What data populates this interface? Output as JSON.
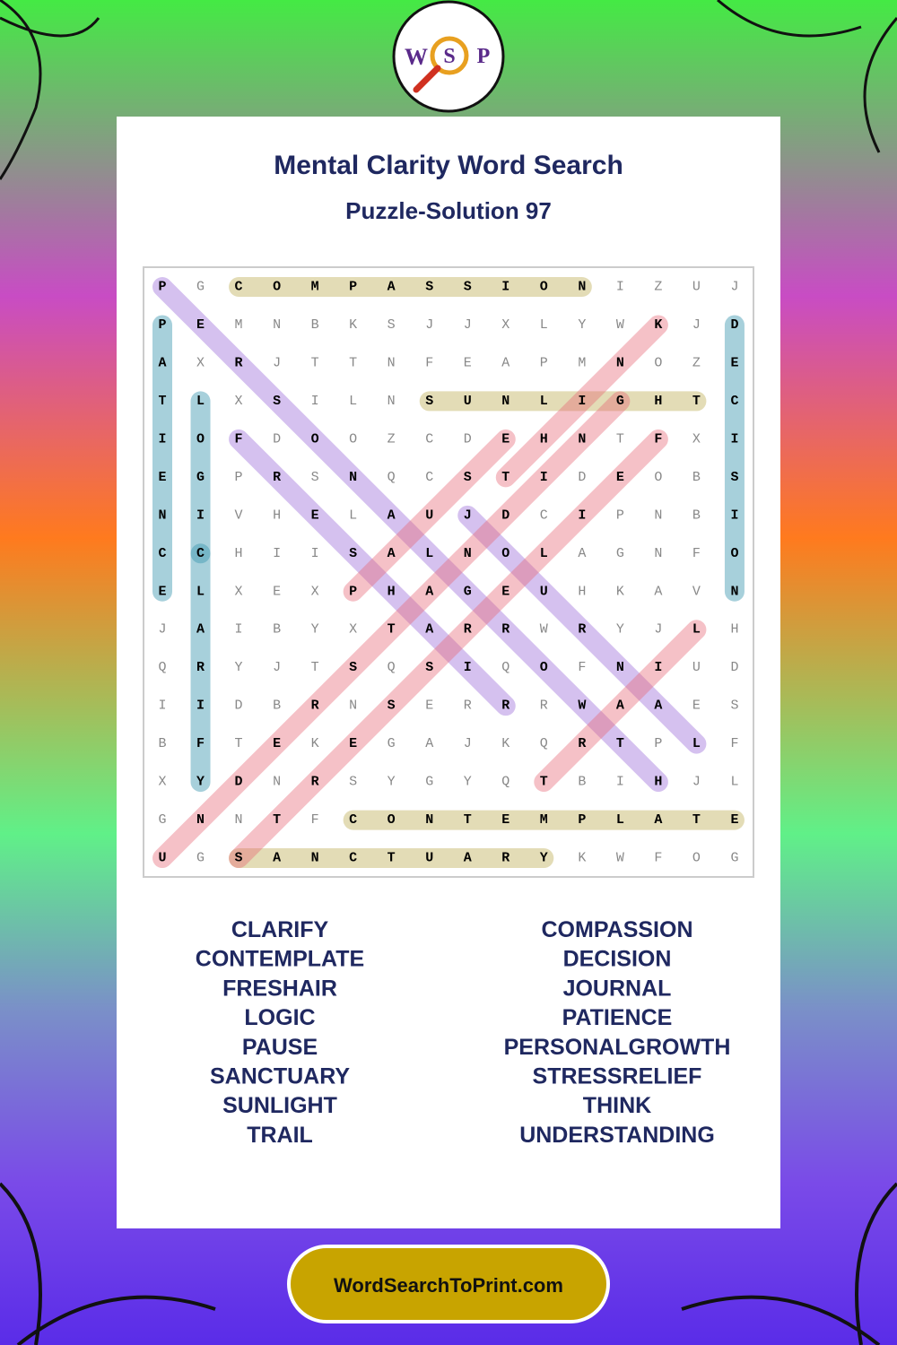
{
  "logo": {
    "letters": [
      "W",
      "S",
      "P"
    ]
  },
  "header": {
    "title": "Mental Clarity Word Search",
    "subtitle": "Puzzle-Solution 97"
  },
  "grid": {
    "rows": [
      [
        "P",
        "G",
        "C",
        "O",
        "M",
        "P",
        "A",
        "S",
        "S",
        "I",
        "O",
        "N",
        "I",
        "Z",
        "U",
        "J"
      ],
      [
        "P",
        "E",
        "M",
        "N",
        "B",
        "K",
        "S",
        "J",
        "J",
        "X",
        "L",
        "Y",
        "W",
        "K",
        "J",
        "D"
      ],
      [
        "A",
        "X",
        "R",
        "J",
        "T",
        "T",
        "N",
        "F",
        "E",
        "A",
        "P",
        "M",
        "N",
        "O",
        "Z",
        "E"
      ],
      [
        "T",
        "L",
        "X",
        "S",
        "I",
        "L",
        "N",
        "S",
        "U",
        "N",
        "L",
        "I",
        "G",
        "H",
        "T",
        "C"
      ],
      [
        "I",
        "O",
        "F",
        "D",
        "O",
        "O",
        "Z",
        "C",
        "D",
        "E",
        "H",
        "N",
        "T",
        "F",
        "X",
        "I"
      ],
      [
        "E",
        "G",
        "P",
        "R",
        "S",
        "N",
        "Q",
        "C",
        "S",
        "T",
        "I",
        "D",
        "E",
        "O",
        "B",
        "S"
      ],
      [
        "N",
        "I",
        "V",
        "H",
        "E",
        "L",
        "A",
        "U",
        "J",
        "D",
        "C",
        "I",
        "P",
        "N",
        "B",
        "I"
      ],
      [
        "C",
        "C",
        "H",
        "I",
        "I",
        "S",
        "A",
        "L",
        "N",
        "O",
        "L",
        "A",
        "G",
        "N",
        "F",
        "O"
      ],
      [
        "E",
        "L",
        "X",
        "E",
        "X",
        "P",
        "H",
        "A",
        "G",
        "E",
        "U",
        "H",
        "K",
        "A",
        "V",
        "N"
      ],
      [
        "J",
        "A",
        "I",
        "B",
        "Y",
        "X",
        "T",
        "A",
        "R",
        "R",
        "W",
        "R",
        "Y",
        "J",
        "L",
        "H"
      ],
      [
        "Q",
        "R",
        "Y",
        "J",
        "T",
        "S",
        "Q",
        "S",
        "I",
        "Q",
        "O",
        "F",
        "N",
        "I",
        "U",
        "D"
      ],
      [
        "I",
        "I",
        "D",
        "B",
        "R",
        "N",
        "S",
        "E",
        "R",
        "R",
        "R",
        "W",
        "A",
        "A",
        "E",
        "S"
      ],
      [
        "B",
        "F",
        "T",
        "E",
        "K",
        "E",
        "G",
        "A",
        "J",
        "K",
        "Q",
        "R",
        "T",
        "P",
        "L",
        "F"
      ],
      [
        "X",
        "Y",
        "D",
        "N",
        "R",
        "S",
        "Y",
        "G",
        "Y",
        "Q",
        "T",
        "B",
        "I",
        "H",
        "J",
        "L"
      ],
      [
        "G",
        "N",
        "N",
        "T",
        "F",
        "C",
        "O",
        "N",
        "T",
        "E",
        "M",
        "P",
        "L",
        "A",
        "T",
        "E"
      ],
      [
        "U",
        "G",
        "S",
        "A",
        "N",
        "C",
        "T",
        "U",
        "A",
        "R",
        "Y",
        "K",
        "W",
        "F",
        "O",
        "G"
      ]
    ],
    "solutions": [
      {
        "start": [
          0,
          2
        ],
        "end": [
          0,
          11
        ],
        "color": "rgba(200,185,110,0.5)"
      },
      {
        "start": [
          3,
          7
        ],
        "end": [
          3,
          14
        ],
        "color": "rgba(200,185,110,0.5)"
      },
      {
        "start": [
          14,
          5
        ],
        "end": [
          14,
          15
        ],
        "color": "rgba(200,185,110,0.5)"
      },
      {
        "start": [
          15,
          2
        ],
        "end": [
          15,
          10
        ],
        "color": "rgba(200,185,110,0.5)"
      },
      {
        "start": [
          1,
          0
        ],
        "end": [
          8,
          0
        ],
        "color": "rgba(60,150,175,0.45)"
      },
      {
        "start": [
          3,
          1
        ],
        "end": [
          7,
          1
        ],
        "color": "rgba(60,150,175,0.45)"
      },
      {
        "start": [
          7,
          1
        ],
        "end": [
          13,
          1
        ],
        "color": "rgba(60,150,175,0.45)"
      },
      {
        "start": [
          1,
          15
        ],
        "end": [
          8,
          15
        ],
        "color": "rgba(60,150,175,0.45)"
      },
      {
        "start": [
          0,
          0
        ],
        "end": [
          13,
          13
        ],
        "color": "rgba(150,100,215,0.4)"
      },
      {
        "start": [
          4,
          2
        ],
        "end": [
          11,
          9
        ],
        "color": "rgba(150,100,215,0.4)"
      },
      {
        "start": [
          6,
          8
        ],
        "end": [
          12,
          14
        ],
        "color": "rgba(150,100,215,0.4)"
      },
      {
        "start": [
          15,
          0
        ],
        "end": [
          3,
          12
        ],
        "color": "rgba(230,100,115,0.4)"
      },
      {
        "start": [
          15,
          2
        ],
        "end": [
          4,
          13
        ],
        "color": "rgba(230,100,115,0.4)"
      },
      {
        "start": [
          5,
          9
        ],
        "end": [
          1,
          13
        ],
        "color": "rgba(230,100,115,0.4)"
      },
      {
        "start": [
          8,
          5
        ],
        "end": [
          4,
          9
        ],
        "color": "rgba(230,100,115,0.4)"
      },
      {
        "start": [
          13,
          10
        ],
        "end": [
          9,
          14
        ],
        "color": "rgba(230,100,115,0.4)"
      }
    ]
  },
  "words": {
    "left": [
      "CLARIFY",
      "CONTEMPLATE",
      "FRESHAIR",
      "LOGIC",
      "PAUSE",
      "SANCTUARY",
      "SUNLIGHT",
      "TRAIL"
    ],
    "right": [
      "COMPASSION",
      "DECISION",
      "JOURNAL",
      "PATIENCE",
      "PERSONALGROWTH",
      "STRESSRELIEF",
      "THINK",
      "UNDERSTANDING"
    ]
  },
  "footer": {
    "link": "WordSearchToPrint.com"
  }
}
